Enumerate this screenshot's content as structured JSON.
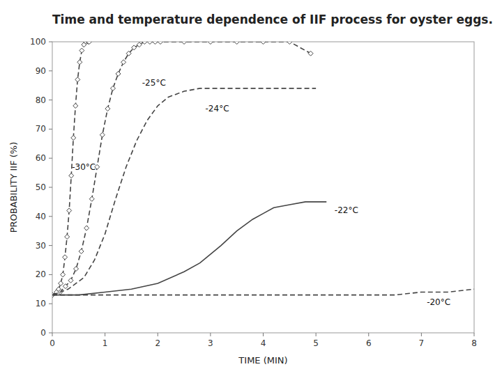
{
  "chart_data": {
    "type": "line",
    "title": "Time and temperature dependence of IIF process for oyster eggs.",
    "x_label": "TIME (MIN)",
    "y_label": "PROBABILITY IIF (%)",
    "xlim": [
      0,
      8
    ],
    "ylim": [
      0,
      100
    ],
    "xticks": [
      0,
      1,
      2,
      3,
      4,
      5,
      6,
      7,
      8
    ],
    "yticks": [
      0,
      10,
      20,
      30,
      40,
      50,
      60,
      70,
      80,
      90,
      100
    ],
    "grid": false,
    "series": [
      {
        "x": [
          0,
          0.08,
          0.12,
          0.16,
          0.2,
          0.24,
          0.28,
          0.32,
          0.36,
          0.4,
          0.44,
          0.48,
          0.52,
          0.56,
          0.6,
          0.64,
          0.68,
          0.7
        ],
        "values": [
          13,
          14,
          15,
          17,
          20,
          26,
          33,
          42,
          54,
          67,
          78,
          87,
          93,
          97,
          99,
          100,
          100,
          100
        ],
        "color": "#444444",
        "line_style": "dashed",
        "marker": "diamond"
      },
      {
        "x": [
          0,
          0.15,
          0.25,
          0.35,
          0.45,
          0.55,
          0.65,
          0.75,
          0.85,
          0.95,
          1.05,
          1.15,
          1.25,
          1.35,
          1.45,
          1.55,
          1.65,
          1.75,
          1.85,
          1.95,
          2.05,
          2.5,
          3.0,
          3.5,
          4.0,
          4.5,
          4.9
        ],
        "values": [
          13,
          14,
          16,
          18,
          22,
          28,
          36,
          46,
          57,
          68,
          77,
          84,
          89,
          93,
          96,
          98,
          99,
          100,
          100,
          100,
          100,
          100,
          100,
          100,
          100,
          100,
          96
        ],
        "color": "#444444",
        "line_style": "dashed",
        "marker": "diamond"
      },
      {
        "x": [
          0,
          0.3,
          0.6,
          0.8,
          1.0,
          1.2,
          1.4,
          1.6,
          1.8,
          2.0,
          2.2,
          2.5,
          2.8,
          3.0,
          3.5,
          4.0,
          4.5,
          5.0
        ],
        "values": [
          13,
          15,
          19,
          25,
          34,
          46,
          57,
          66,
          73,
          78,
          81,
          83,
          84,
          84,
          84,
          84,
          84,
          84
        ],
        "color": "#444444",
        "line_style": "dashed",
        "marker": "none"
      },
      {
        "x": [
          0,
          0.5,
          1.0,
          1.5,
          2.0,
          2.5,
          2.8,
          3.0,
          3.2,
          3.5,
          3.8,
          4.0,
          4.2,
          4.5,
          4.8,
          5.0,
          5.2
        ],
        "values": [
          13,
          13,
          14,
          15,
          17,
          21,
          24,
          27,
          30,
          35,
          39,
          41,
          43,
          44,
          45,
          45,
          45
        ],
        "color": "#444444",
        "line_style": "solid",
        "marker": "none"
      },
      {
        "x": [
          0,
          0.5,
          1.0,
          2.0,
          3.0,
          4.0,
          4.5,
          5.0,
          5.5,
          6.0,
          6.5,
          7.0,
          7.5,
          8.0
        ],
        "values": [
          13,
          13,
          13,
          13,
          13,
          13,
          13,
          13,
          13,
          13,
          13,
          14,
          14,
          15
        ],
        "color": "#444444",
        "line_style": "dashed",
        "marker": "none"
      }
    ],
    "annotations": [
      {
        "text": "-30°C",
        "x": 0.32,
        "y": 57
      },
      {
        "text": "-25°C",
        "x": 1.65,
        "y": 86
      },
      {
        "text": "-24°C",
        "x": 2.85,
        "y": 77
      },
      {
        "text": "-22°C",
        "x": 5.3,
        "y": 42
      },
      {
        "text": "-20°C",
        "x": 7.05,
        "y": 10.5
      }
    ]
  }
}
